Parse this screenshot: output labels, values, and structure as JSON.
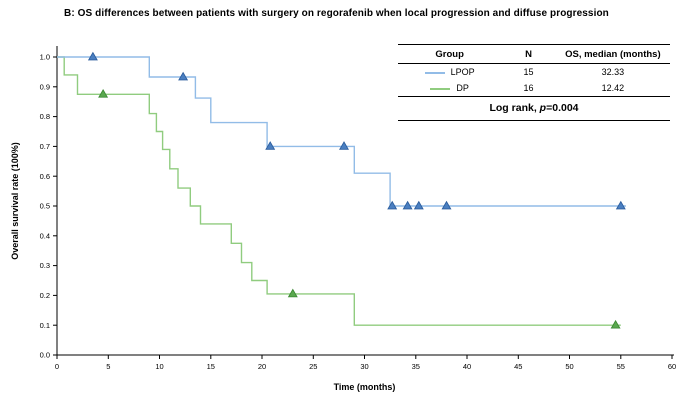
{
  "chart_data": {
    "type": "line",
    "variant": "kaplan_meier_step",
    "title": "B: OS differences between patients with surgery on regorafenib when local progression and diffuse progression",
    "xlabel": "Time (months)",
    "ylabel": "Overall survival rate (100%)",
    "xlim": [
      0,
      60
    ],
    "ylim": [
      0,
      1
    ],
    "xticks": [
      0,
      5,
      10,
      15,
      20,
      25,
      30,
      35,
      40,
      45,
      50,
      55,
      60
    ],
    "yticks": [
      0,
      0.1,
      0.2,
      0.3,
      0.4,
      0.5,
      0.6,
      0.7,
      0.8,
      0.9,
      1.0
    ],
    "grid": false,
    "legend_position": "top-right",
    "series": [
      {
        "name": "LPOP",
        "line_color": "#92bce7",
        "marker_fill": "#4a7fc1",
        "marker_stroke": "#2d5e9e",
        "steps": [
          [
            0,
            1.0
          ],
          [
            9,
            0.933
          ],
          [
            13.5,
            0.862
          ],
          [
            15,
            0.78
          ],
          [
            20.5,
            0.7
          ],
          [
            29,
            0.61
          ],
          [
            32.5,
            0.5
          ],
          [
            55.5,
            0.5
          ]
        ],
        "censors": [
          [
            3.5,
            1.0
          ],
          [
            12.3,
            0.933
          ],
          [
            20.8,
            0.7
          ],
          [
            28,
            0.7
          ],
          [
            32.7,
            0.5
          ],
          [
            34.2,
            0.5
          ],
          [
            35.3,
            0.5
          ],
          [
            38,
            0.5
          ],
          [
            55,
            0.5
          ]
        ]
      },
      {
        "name": "DP",
        "line_color": "#90cc7f",
        "marker_fill": "#5aa84f",
        "marker_stroke": "#3c8a34",
        "steps": [
          [
            0,
            1.0
          ],
          [
            0.7,
            0.94
          ],
          [
            2,
            0.875
          ],
          [
            9,
            0.81
          ],
          [
            9.7,
            0.75
          ],
          [
            10.3,
            0.69
          ],
          [
            11,
            0.625
          ],
          [
            11.8,
            0.56
          ],
          [
            13,
            0.5
          ],
          [
            14,
            0.44
          ],
          [
            17,
            0.375
          ],
          [
            18,
            0.31
          ],
          [
            19,
            0.25
          ],
          [
            20.5,
            0.205
          ],
          [
            29,
            0.1
          ],
          [
            55,
            0.1
          ]
        ],
        "censors": [
          [
            4.5,
            0.875
          ],
          [
            23,
            0.205
          ],
          [
            54.5,
            0.1
          ]
        ]
      }
    ]
  },
  "legend_table": {
    "headers": [
      "Group",
      "N",
      "OS, median (months)"
    ],
    "rows": [
      {
        "group": "LPOP",
        "n": "15",
        "os": "32.33"
      },
      {
        "group": "DP",
        "n": "16",
        "os": "12.42"
      }
    ],
    "log_rank_prefix": "Log rank, ",
    "log_rank_p": "p",
    "log_rank_value": "=0.004"
  }
}
